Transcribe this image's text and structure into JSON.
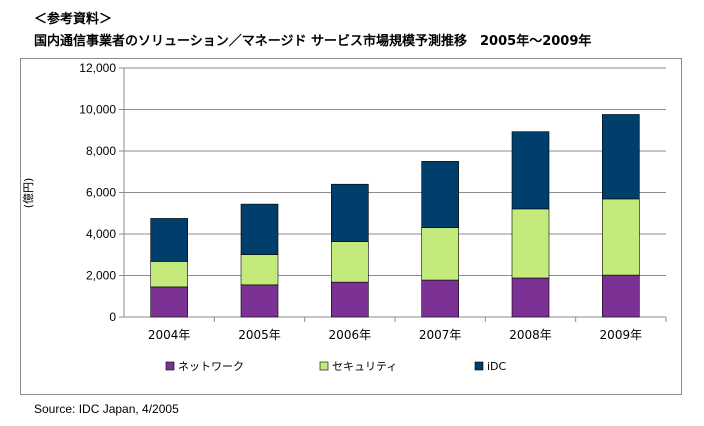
{
  "header": {
    "heading": "＜参考資料＞",
    "subtitle": "国内通信事業者のソリューション／マネージド サービス市場規模予測推移　2005年～2009年"
  },
  "source": "Source: IDC Japan, 4/2005",
  "chart_data": {
    "type": "bar",
    "stacked": true,
    "categories": [
      "2004年",
      "2005年",
      "2006年",
      "2007年",
      "2008年",
      "2009年"
    ],
    "series": [
      {
        "name": "ネットワーク",
        "color": "#7b3294",
        "values": [
          1450,
          1550,
          1680,
          1780,
          1880,
          2020
        ]
      },
      {
        "name": "セキュリティ",
        "color": "#c4ea7c",
        "values": [
          1230,
          1460,
          1950,
          2530,
          3330,
          3670
        ]
      },
      {
        "name": "iDC",
        "color": "#003e6b",
        "values": [
          2070,
          2430,
          2770,
          3190,
          3720,
          4070
        ]
      }
    ],
    "ylabel": "(億円)",
    "ylim": [
      0,
      12000
    ],
    "yticks": [
      "0",
      "2,000",
      "4,000",
      "6,000",
      "8,000",
      "10,000",
      "12,000"
    ],
    "grid": true,
    "legend_position": "bottom"
  }
}
